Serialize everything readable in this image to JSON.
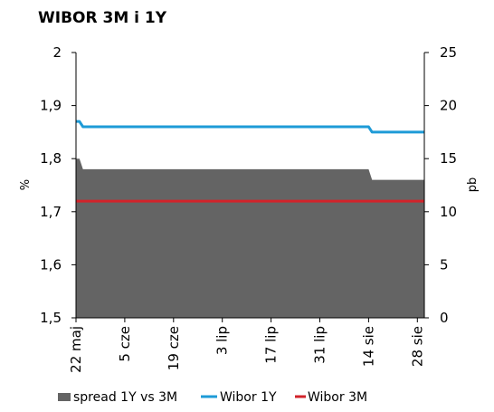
{
  "chart_data": {
    "type": "line",
    "title": "WIBOR 3M i 1Y",
    "ylabel_left": "%",
    "ylabel_right": "pb",
    "ylim_left": [
      1.5,
      2.0
    ],
    "ylim_right": [
      0,
      25
    ],
    "yticks_left": [
      "1,5",
      "1,6",
      "1,7",
      "1,8",
      "1,9",
      "2"
    ],
    "yticks_right": [
      "0",
      "5",
      "10",
      "15",
      "20",
      "25"
    ],
    "x_range_days": [
      0,
      100
    ],
    "x_tick_labels": [
      "22 maj",
      "5 cze",
      "19 cze",
      "3 lip",
      "17 lip",
      "31 lip",
      "14 sie",
      "28 sie"
    ],
    "x_tick_days": [
      0,
      14,
      28,
      42,
      56,
      70,
      84,
      98
    ],
    "grid": false,
    "legend_position": "bottom",
    "series": [
      {
        "name": "spread 1Y vs 3M",
        "kind": "area",
        "axis": "right",
        "color": "#646464",
        "x": [
          0,
          1,
          2,
          84,
          85,
          100
        ],
        "values": [
          15,
          15,
          14,
          14,
          13,
          13
        ]
      },
      {
        "name": "Wibor 1Y",
        "kind": "line",
        "axis": "left",
        "color": "#1E9BD7",
        "x": [
          0,
          1,
          2,
          84,
          85,
          100
        ],
        "values": [
          1.87,
          1.87,
          1.86,
          1.86,
          1.85,
          1.85
        ]
      },
      {
        "name": "Wibor 3M",
        "kind": "line",
        "axis": "left",
        "color": "#D2232A",
        "x": [
          0,
          100
        ],
        "values": [
          1.72,
          1.72
        ]
      }
    ]
  }
}
